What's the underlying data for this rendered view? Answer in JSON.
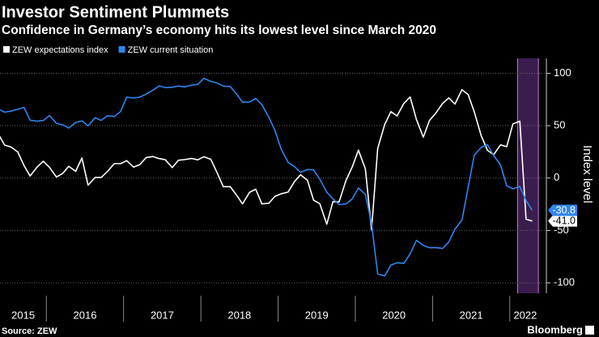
{
  "chart_data": {
    "type": "line",
    "title": "Investor Sentiment Plummets",
    "subtitle": "Confidence in Germany’s economy hits its lowest level since March 2020",
    "y_axis_label": "Index level",
    "source": "Source: ZEW",
    "brand": "Bloomberg",
    "x": [
      2015.38,
      2015.46,
      2015.54,
      2015.63,
      2015.71,
      2015.79,
      2015.88,
      2015.96,
      2016.04,
      2016.13,
      2016.21,
      2016.29,
      2016.38,
      2016.46,
      2016.54,
      2016.63,
      2016.71,
      2016.79,
      2016.88,
      2016.96,
      2017.04,
      2017.13,
      2017.21,
      2017.29,
      2017.38,
      2017.46,
      2017.54,
      2017.63,
      2017.71,
      2017.79,
      2017.88,
      2017.96,
      2018.04,
      2018.13,
      2018.21,
      2018.29,
      2018.38,
      2018.46,
      2018.54,
      2018.63,
      2018.71,
      2018.79,
      2018.88,
      2018.96,
      2019.04,
      2019.13,
      2019.21,
      2019.29,
      2019.38,
      2019.46,
      2019.54,
      2019.63,
      2019.71,
      2019.79,
      2019.88,
      2019.96,
      2020.04,
      2020.13,
      2020.21,
      2020.29,
      2020.38,
      2020.46,
      2020.54,
      2020.63,
      2020.71,
      2020.79,
      2020.88,
      2020.96,
      2021.04,
      2021.13,
      2021.21,
      2021.29,
      2021.38,
      2021.46,
      2021.54,
      2021.63,
      2021.71,
      2021.79,
      2021.88,
      2021.96,
      2022.04,
      2022.13,
      2022.21,
      2022.29
    ],
    "xlim": [
      2015.4,
      2022.4
    ],
    "xticks": [
      2015,
      2016,
      2017,
      2018,
      2019,
      2020,
      2021,
      2022
    ],
    "ylim": [
      -110,
      112
    ],
    "yticks": [
      -100,
      -50,
      0,
      50,
      100
    ],
    "grid": true,
    "highlight_x": [
      2022.1,
      2022.37
    ],
    "series": [
      {
        "name": "ZEW expectations index",
        "color": "#ffffff",
        "values": [
          41.9,
          31.5,
          29.7,
          25.0,
          12.1,
          1.9,
          10.4,
          16.1,
          10.2,
          1.0,
          4.3,
          11.2,
          6.4,
          19.2,
          -6.8,
          0.5,
          0.5,
          6.2,
          13.8,
          13.8,
          16.6,
          10.4,
          12.8,
          19.5,
          20.6,
          18.6,
          17.5,
          10.0,
          17.0,
          17.6,
          18.7,
          17.4,
          20.4,
          17.8,
          5.1,
          -8.2,
          -8.2,
          -16.1,
          -24.7,
          -13.7,
          -10.6,
          -24.7,
          -24.1,
          -17.5,
          -15.0,
          -13.4,
          -3.6,
          3.1,
          -2.1,
          -21.1,
          -24.5,
          -44.1,
          -22.5,
          -22.8,
          -2.1,
          10.7,
          26.7,
          8.7,
          -49.5,
          28.2,
          51.0,
          63.4,
          59.3,
          71.5,
          77.4,
          56.1,
          39.0,
          55.0,
          61.8,
          71.2,
          76.6,
          70.7,
          84.4,
          79.8,
          63.3,
          40.4,
          26.5,
          22.3,
          31.7,
          29.9,
          51.7,
          54.3,
          -39.3,
          -41.0
        ],
        "value_labels": [
          null,
          null,
          null,
          null,
          null,
          null,
          null,
          null,
          null,
          null,
          null,
          null,
          null,
          null,
          null,
          null,
          null,
          null,
          null,
          null,
          null,
          null,
          null,
          null,
          null,
          null,
          null,
          null,
          null,
          null,
          null,
          null,
          null,
          null,
          null,
          null,
          null,
          null,
          null,
          null,
          null,
          null,
          null,
          null,
          null,
          null,
          null,
          null,
          null,
          null,
          null,
          null,
          null,
          null,
          null,
          null,
          null,
          null,
          null,
          null,
          null,
          null,
          null,
          null,
          null,
          null,
          null,
          null,
          null,
          null,
          null,
          null,
          null,
          null,
          null,
          null,
          null,
          null,
          null,
          null,
          null,
          null,
          null,
          "-41.0"
        ]
      },
      {
        "name": "ZEW current situation",
        "color": "#2f86f0",
        "values": [
          65.7,
          62.9,
          63.9,
          65.7,
          67.5,
          55.2,
          54.4,
          55.0,
          59.7,
          52.3,
          50.8,
          47.7,
          53.1,
          54.5,
          49.8,
          57.6,
          55.1,
          59.5,
          58.8,
          63.5,
          77.3,
          76.4,
          77.3,
          80.1,
          83.9,
          88.0,
          86.4,
          86.7,
          87.9,
          87.0,
          88.8,
          89.3,
          95.2,
          92.3,
          90.7,
          87.9,
          87.4,
          80.6,
          72.4,
          72.6,
          76.0,
          70.1,
          58.2,
          45.3,
          27.6,
          15.0,
          11.1,
          5.5,
          8.2,
          7.8,
          -1.1,
          -13.5,
          -19.9,
          -25.3,
          -24.7,
          -19.9,
          -9.5,
          -15.7,
          -43.1,
          -91.5,
          -93.5,
          -83.1,
          -80.9,
          -81.3,
          -72.3,
          -59.5,
          -64.3,
          -66.5,
          -66.4,
          -67.2,
          -61.0,
          -48.8,
          -40.1,
          -9.1,
          21.9,
          29.3,
          31.9,
          21.6,
          12.5,
          -7.4,
          -10.2,
          -8.1,
          -21.4,
          -30.8
        ],
        "value_labels": [
          null,
          null,
          null,
          null,
          null,
          null,
          null,
          null,
          null,
          null,
          null,
          null,
          null,
          null,
          null,
          null,
          null,
          null,
          null,
          null,
          null,
          null,
          null,
          null,
          null,
          null,
          null,
          null,
          null,
          null,
          null,
          null,
          null,
          null,
          null,
          null,
          null,
          null,
          null,
          null,
          null,
          null,
          null,
          null,
          null,
          null,
          null,
          null,
          null,
          null,
          null,
          null,
          null,
          null,
          null,
          null,
          null,
          null,
          null,
          null,
          null,
          null,
          null,
          null,
          null,
          null,
          null,
          null,
          null,
          null,
          null,
          null,
          null,
          null,
          null,
          null,
          null,
          null,
          null,
          null,
          null,
          null,
          null,
          "-30.8"
        ]
      }
    ]
  }
}
